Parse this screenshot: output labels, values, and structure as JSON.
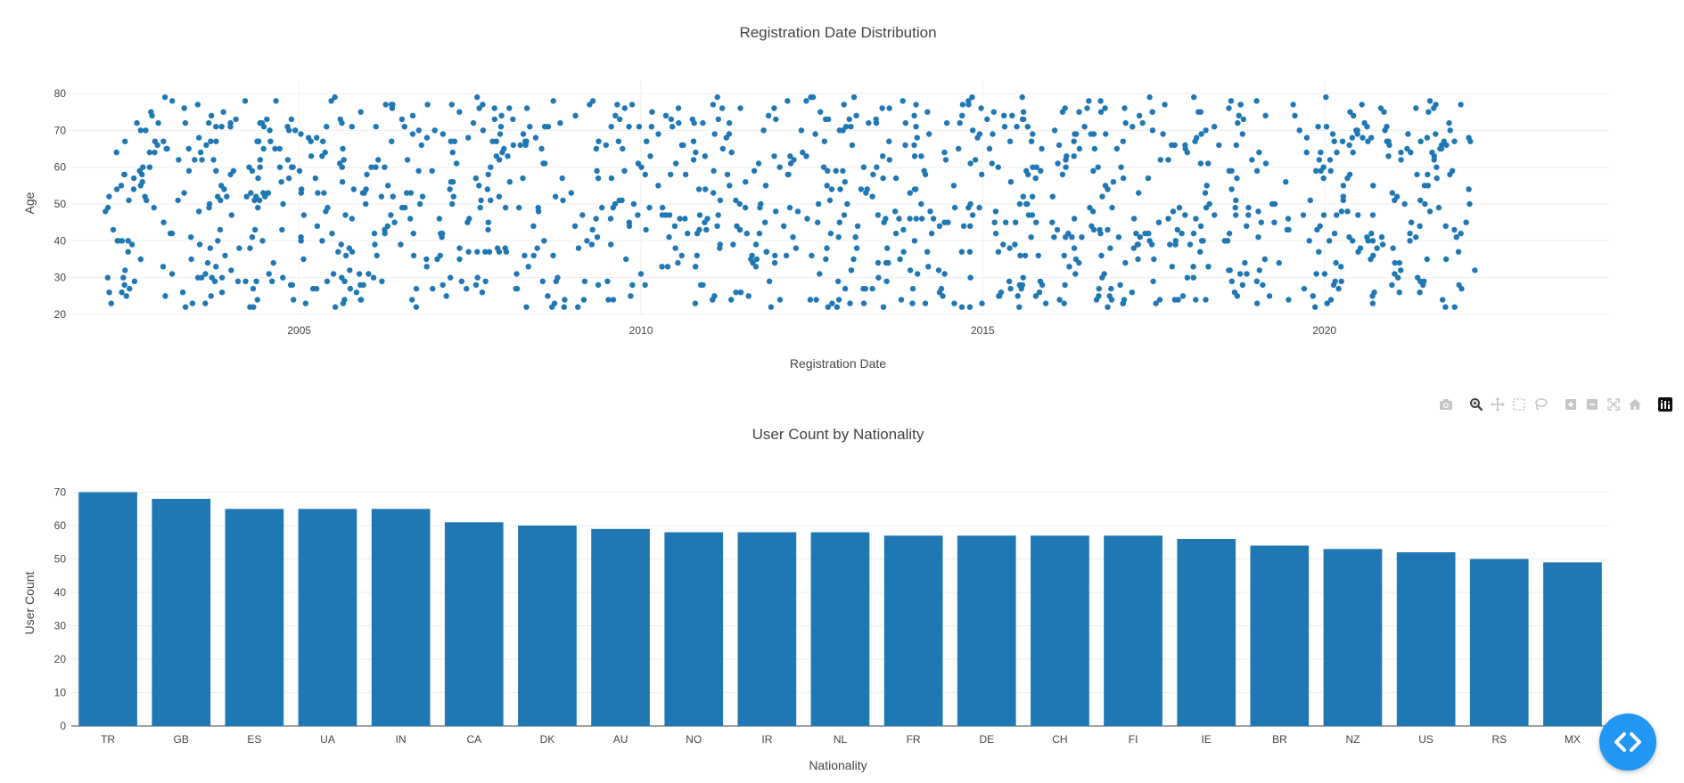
{
  "chart_data": [
    {
      "type": "scatter",
      "title": "Registration Date Distribution",
      "xlabel": "Registration Date",
      "ylabel": "Age",
      "xlim": [
        "2001-09-01",
        "2024-03-01"
      ],
      "ylim": [
        20,
        80
      ],
      "xticks": [
        "2005",
        "2010",
        "2015",
        "2020"
      ],
      "yticks": [
        20,
        30,
        40,
        50,
        60,
        70,
        80
      ],
      "grid": true,
      "marker_color": "#1f77b4",
      "point_count": 1200,
      "date_range": [
        "2002-03-01",
        "2022-03-20"
      ],
      "age_range": [
        22,
        79
      ]
    },
    {
      "type": "bar",
      "title": "User Count by Nationality",
      "xlabel": "Nationality",
      "ylabel": "User Count",
      "ylim": [
        0,
        72
      ],
      "yticks": [
        0,
        10,
        20,
        30,
        40,
        50,
        60,
        70
      ],
      "grid": true,
      "bar_color": "#1f77b4",
      "categories": [
        "TR",
        "GB",
        "ES",
        "UA",
        "IN",
        "CA",
        "DK",
        "AU",
        "NO",
        "IR",
        "NL",
        "FR",
        "DE",
        "CH",
        "FI",
        "IE",
        "BR",
        "NZ",
        "US",
        "RS",
        "MX"
      ],
      "values": [
        70,
        68,
        65,
        65,
        65,
        61,
        60,
        59,
        58,
        58,
        58,
        57,
        57,
        57,
        57,
        56,
        54,
        53,
        52,
        50,
        49
      ]
    }
  ],
  "modebar": {
    "buttons": [
      "camera-icon",
      "zoom-icon",
      "pan-icon",
      "box-select-icon",
      "lasso-icon",
      "zoom-in-icon",
      "zoom-out-icon",
      "autoscale-icon",
      "reset-axes-icon",
      "plotly-logo-icon"
    ],
    "active": "zoom-icon"
  },
  "fab": {
    "icon": "code-icon",
    "color": "#2196f3"
  }
}
